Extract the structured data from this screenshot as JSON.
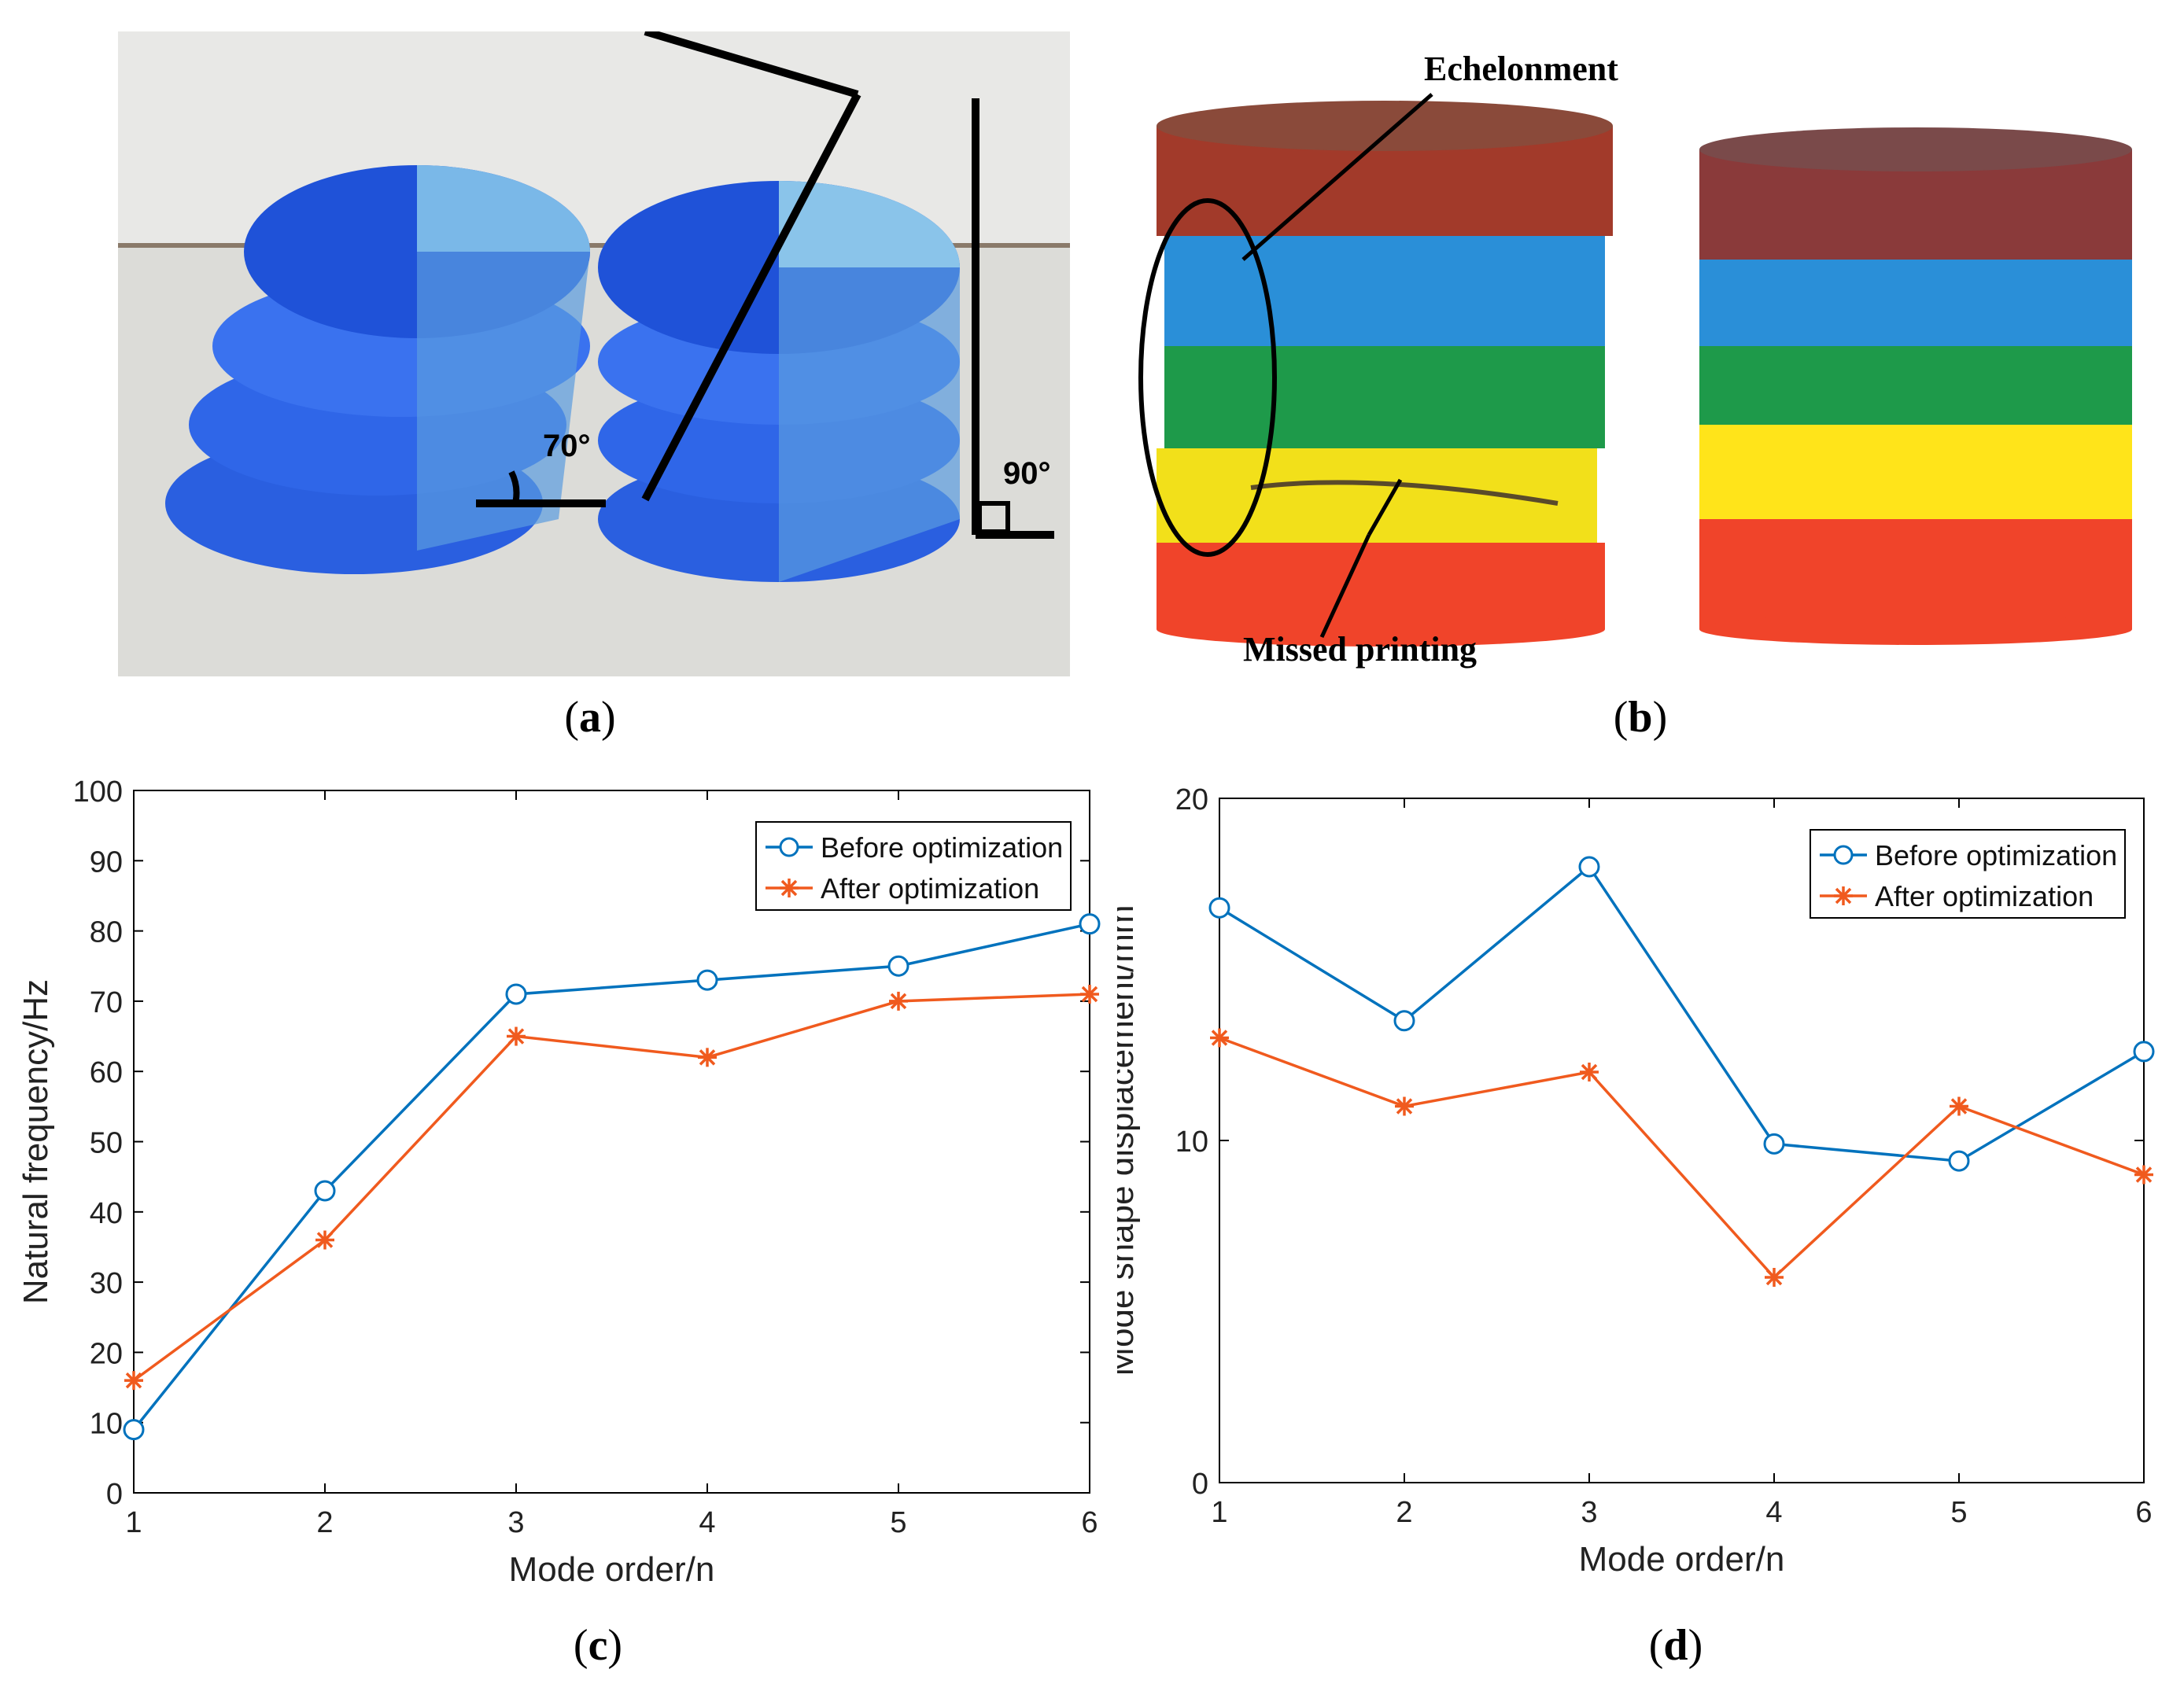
{
  "captions": {
    "a": "a",
    "b": "b",
    "c": "c",
    "d": "d"
  },
  "photo_a": {
    "angle_left": "70°",
    "angle_right": "90°",
    "colors": {
      "blue_dark": "#1f4fd8",
      "blue_light": "#4a90e8",
      "bg": "#d9d9d6"
    }
  },
  "photo_b": {
    "label_top": "Echelonment",
    "label_bottom": "Missed printing",
    "bands": [
      "#a23a2a",
      "#2a8fd8",
      "#1e9a4a",
      "#f2e01a",
      "#f0442a"
    ]
  },
  "chart_data": [
    {
      "type": "line",
      "x": [
        1,
        2,
        3,
        4,
        5,
        6
      ],
      "xlabel": "Mode order/n",
      "ylabel": "Natural frequency/Hz",
      "xlim": [
        1,
        6
      ],
      "ylim": [
        0,
        100
      ],
      "yticks": [
        0,
        10,
        20,
        30,
        40,
        50,
        60,
        70,
        80,
        90,
        100
      ],
      "xticks": [
        1,
        2,
        3,
        4,
        5,
        6
      ],
      "legend": "top-right",
      "series": [
        {
          "name": "Before optimization",
          "values": [
            9,
            43,
            71,
            73,
            75,
            81
          ],
          "color": "#0072bd",
          "marker": "circle"
        },
        {
          "name": "After optimization",
          "values": [
            16,
            36,
            65,
            62,
            70,
            71
          ],
          "color": "#f05a1e",
          "marker": "asterisk"
        }
      ]
    },
    {
      "type": "line",
      "x": [
        1,
        2,
        3,
        4,
        5,
        6
      ],
      "xlabel": "Mode order/n",
      "ylabel": "Mode shape displacement/mm",
      "xlim": [
        1,
        6
      ],
      "ylim": [
        0,
        20
      ],
      "yticks": [
        0,
        10,
        20
      ],
      "xticks": [
        1,
        2,
        3,
        4,
        5,
        6
      ],
      "legend": "top-right",
      "series": [
        {
          "name": "Before optimization",
          "values": [
            16.8,
            13.5,
            18,
            9.9,
            9.4,
            12.6
          ],
          "color": "#0072bd",
          "marker": "circle"
        },
        {
          "name": "After optimization",
          "values": [
            13,
            11,
            12,
            6,
            11,
            9
          ],
          "color": "#f05a1e",
          "marker": "asterisk"
        }
      ]
    }
  ]
}
